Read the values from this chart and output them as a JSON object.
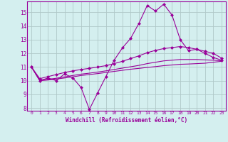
{
  "xlabel": "Windchill (Refroidissement éolien,°C)",
  "background_color": "#d4efef",
  "grid_color": "#b0c8c8",
  "line_color": "#990099",
  "xlim": [
    -0.5,
    23.5
  ],
  "ylim": [
    7.8,
    15.8
  ],
  "yticks": [
    8,
    9,
    10,
    11,
    12,
    13,
    14,
    15
  ],
  "xticks": [
    0,
    1,
    2,
    3,
    4,
    5,
    6,
    7,
    8,
    9,
    10,
    11,
    12,
    13,
    14,
    15,
    16,
    17,
    18,
    19,
    20,
    21,
    22,
    23
  ],
  "series1_x": [
    0,
    1,
    2,
    3,
    4,
    5,
    6,
    7,
    8,
    9,
    10,
    11,
    12,
    13,
    14,
    15,
    16,
    17,
    18,
    19,
    20,
    21,
    22,
    23
  ],
  "series1_y": [
    11.0,
    10.0,
    10.2,
    10.0,
    10.5,
    10.2,
    9.5,
    7.9,
    9.1,
    10.3,
    11.5,
    12.4,
    13.1,
    14.2,
    15.5,
    15.1,
    15.6,
    14.8,
    13.0,
    12.2,
    12.3,
    12.0,
    11.7,
    11.5
  ],
  "series2_x": [
    0,
    1,
    2,
    3,
    4,
    5,
    6,
    7,
    8,
    9,
    10,
    11,
    12,
    13,
    14,
    15,
    16,
    17,
    18,
    19,
    20,
    21,
    22,
    23
  ],
  "series2_y": [
    11.0,
    10.15,
    10.3,
    10.45,
    10.6,
    10.72,
    10.82,
    10.9,
    11.0,
    11.1,
    11.25,
    11.42,
    11.62,
    11.82,
    12.05,
    12.22,
    12.35,
    12.42,
    12.5,
    12.42,
    12.3,
    12.15,
    12.0,
    11.65
  ],
  "series3_x": [
    0,
    1,
    2,
    3,
    4,
    5,
    6,
    7,
    8,
    9,
    10,
    11,
    12,
    13,
    14,
    15,
    16,
    17,
    18,
    19,
    20,
    21,
    22,
    23
  ],
  "series3_y": [
    11.0,
    10.05,
    10.1,
    10.18,
    10.28,
    10.38,
    10.48,
    10.55,
    10.63,
    10.72,
    10.82,
    10.92,
    11.02,
    11.12,
    11.25,
    11.35,
    11.45,
    11.5,
    11.55,
    11.55,
    11.55,
    11.52,
    11.5,
    11.45
  ],
  "series4_x": [
    0,
    1,
    2,
    3,
    4,
    5,
    6,
    7,
    8,
    9,
    10,
    11,
    12,
    13,
    14,
    15,
    16,
    17,
    18,
    19,
    20,
    21,
    22,
    23
  ],
  "series4_y": [
    11.0,
    10.0,
    10.05,
    10.12,
    10.2,
    10.28,
    10.38,
    10.45,
    10.52,
    10.6,
    10.68,
    10.76,
    10.84,
    10.9,
    10.97,
    11.03,
    11.1,
    11.15,
    11.2,
    11.22,
    11.25,
    11.28,
    11.35,
    11.42
  ]
}
